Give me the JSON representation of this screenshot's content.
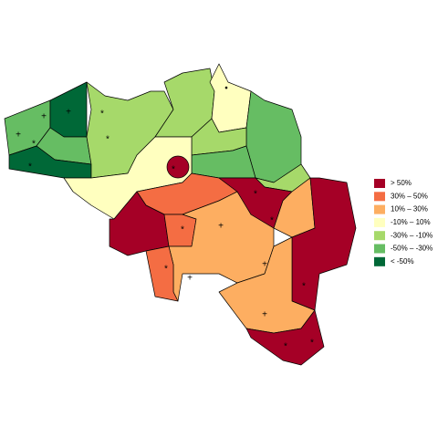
{
  "legend": {
    "items": [
      {
        "label": "> 50%",
        "color": "#a50026"
      },
      {
        "label": "30%  –  50%",
        "color": "#f46d43"
      },
      {
        "label": "10%  –  30%",
        "color": "#fdae61"
      },
      {
        "label": "-10%  –  10%",
        "color": "#ffffbf"
      },
      {
        "label": "-30%  –  -10%",
        "color": "#a6d96a"
      },
      {
        "label": "-50%  –  -30%",
        "color": "#66bd63"
      },
      {
        "label": "< -50%",
        "color": "#006837"
      }
    ]
  }
}
